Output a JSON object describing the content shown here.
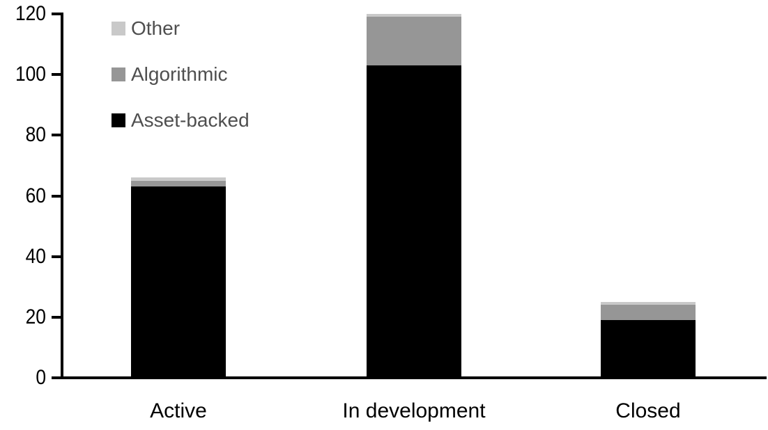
{
  "chart_data": {
    "type": "bar",
    "stacked": true,
    "title": "",
    "xlabel": "",
    "ylabel": "",
    "categories": [
      "Active",
      "In development",
      "Closed"
    ],
    "series": [
      {
        "name": "Asset-backed",
        "color": "#000000",
        "values": [
          63,
          103,
          19
        ]
      },
      {
        "name": "Algorithmic",
        "color": "#969696",
        "values": [
          2,
          16,
          5
        ]
      },
      {
        "name": "Other",
        "color": "#c9c9c9",
        "values": [
          1,
          1,
          1
        ]
      }
    ],
    "stack_totals": [
      66,
      120,
      25
    ],
    "ylim": [
      0,
      120
    ],
    "y_ticks": [
      0,
      20,
      40,
      60,
      80,
      100,
      120
    ],
    "grid": false,
    "legend_position": "top-left",
    "legend_order": [
      "Other",
      "Algorithmic",
      "Asset-backed"
    ]
  },
  "colors": {
    "axis": "#000000",
    "legend_text": "#4f4f4f",
    "background": "#ffffff"
  }
}
